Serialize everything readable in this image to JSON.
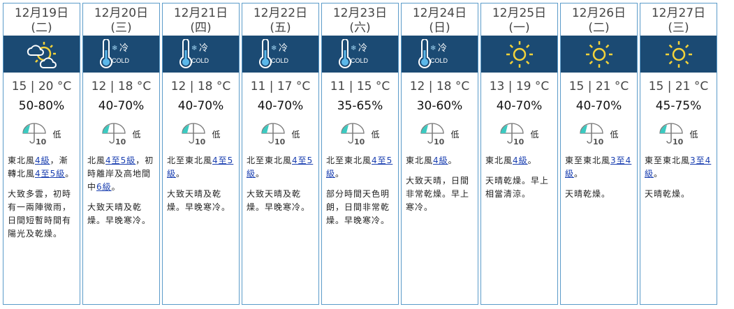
{
  "days": [
    {
      "date": "12月19日",
      "weekday": "(二)",
      "icon": "sunny-periods-cloudy-icon",
      "temp": "15 | 20 °C",
      "rh": "50-80%",
      "psr": "低",
      "wind": [
        {
          "t": "東北風"
        },
        {
          "t": "4級",
          "link": true
        },
        {
          "t": "，漸轉北風"
        },
        {
          "t": "4至5級",
          "link": true
        },
        {
          "t": "。"
        }
      ],
      "desc": "大致多雲，初時有一兩陣微雨，日間短暫時間有陽光及乾燥。"
    },
    {
      "date": "12月20日",
      "weekday": "(三)",
      "icon": "cold-icon",
      "temp": "12 | 18 °C",
      "rh": "40-70%",
      "psr": "低",
      "wind": [
        {
          "t": "北風"
        },
        {
          "t": "4至5級",
          "link": true
        },
        {
          "t": "，初時離岸及高地間中"
        },
        {
          "t": "6級",
          "link": true
        },
        {
          "t": "。"
        }
      ],
      "desc": "大致天晴及乾燥。早晚寒冷。"
    },
    {
      "date": "12月21日",
      "weekday": "(四)",
      "icon": "cold-icon",
      "temp": "12 | 18 °C",
      "rh": "40-70%",
      "psr": "低",
      "wind": [
        {
          "t": "北至東北風"
        },
        {
          "t": "4至5級",
          "link": true
        },
        {
          "t": "。"
        }
      ],
      "desc": "大致天晴及乾燥。早晚寒冷。"
    },
    {
      "date": "12月22日",
      "weekday": "(五)",
      "icon": "cold-icon",
      "temp": "11 | 17 °C",
      "rh": "40-70%",
      "psr": "低",
      "wind": [
        {
          "t": "北至東北風"
        },
        {
          "t": "4至5級",
          "link": true
        },
        {
          "t": "。"
        }
      ],
      "desc": "大致天晴及乾燥。早晚寒冷。"
    },
    {
      "date": "12月23日",
      "weekday": "(六)",
      "icon": "cold-icon",
      "temp": "11 | 15 °C",
      "rh": "35-65%",
      "psr": "低",
      "wind": [
        {
          "t": "北至東北風"
        },
        {
          "t": "4至5級",
          "link": true
        },
        {
          "t": "。"
        }
      ],
      "desc": "部分時間天色明朗，日間非常乾燥。早晚寒冷。"
    },
    {
      "date": "12月24日",
      "weekday": "(日)",
      "icon": "cold-icon",
      "temp": "12 | 18 °C",
      "rh": "30-60%",
      "psr": "低",
      "wind": [
        {
          "t": "東北風"
        },
        {
          "t": "4級",
          "link": true
        },
        {
          "t": "。"
        }
      ],
      "desc": "大致天晴，日間非常乾燥。早上寒冷。"
    },
    {
      "date": "12月25日",
      "weekday": "(一)",
      "icon": "sunny-icon",
      "temp": "13 | 19 °C",
      "rh": "40-70%",
      "psr": "低",
      "wind": [
        {
          "t": "東北風"
        },
        {
          "t": "4級",
          "link": true
        },
        {
          "t": "。"
        }
      ],
      "desc": "天晴乾燥。早上相當清涼。"
    },
    {
      "date": "12月26日",
      "weekday": "(二)",
      "icon": "sunny-icon",
      "temp": "15 | 21 °C",
      "rh": "40-70%",
      "psr": "低",
      "wind": [
        {
          "t": "東至東北風"
        },
        {
          "t": "3至4級",
          "link": true
        },
        {
          "t": "。"
        }
      ],
      "desc": "天晴乾燥。"
    },
    {
      "date": "12月27日",
      "weekday": "(三)",
      "icon": "sunny-icon",
      "temp": "15 | 21 °C",
      "rh": "45-75%",
      "psr": "低",
      "wind": [
        {
          "t": "東至東北風"
        },
        {
          "t": "3至4級",
          "link": true
        },
        {
          "t": "。"
        }
      ],
      "desc": "天晴乾燥。"
    }
  ],
  "cold_label_zh": "冷",
  "cold_label_en": "COLD",
  "psr_number": "10"
}
